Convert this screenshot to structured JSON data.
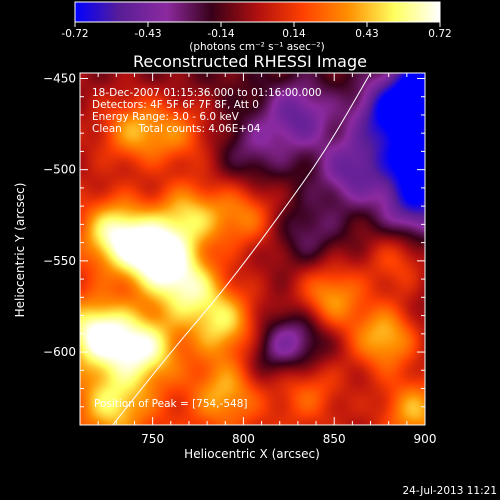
{
  "chart_data": {
    "type": "heatmap",
    "title": "Reconstructed RHESSI Image",
    "xlabel": "Heliocentric X (arcsec)",
    "ylabel": "Heliocentric Y (arcsec)",
    "xlim": [
      710,
      900
    ],
    "ylim": [
      -640,
      -447
    ],
    "x_ticks": [
      750,
      800,
      850,
      900
    ],
    "y_ticks": [
      -450,
      -500,
      -550,
      -600
    ],
    "colorbar": {
      "range": [
        -0.72,
        0.72
      ],
      "ticks": [
        "-0.72",
        "-0.43",
        "-0.14",
        "0.14",
        "0.43",
        "0.72"
      ],
      "unit_label": "(photons cm⁻² s⁻¹ asec⁻²)",
      "colors": [
        "#0000ff",
        "#5a1e96",
        "#8c2aa0",
        "#380018",
        "#b01010",
        "#ff4000",
        "#ff9000",
        "#ffff60",
        "#ffffff"
      ]
    },
    "annotations": [
      "18-Dec-2007 01:15:36.000 to 01:16:00.000",
      "Detectors: 4F 5F 6F 7F 8F, Att 0",
      "Energy Range: 3.0 - 6.0 keV",
      "Clean     Total counts: 4.06E+04"
    ],
    "peak_label": "Position of Peak = [754,-548]",
    "peak": [
      754,
      -548
    ],
    "limb_curve": [
      [
        728,
        -640
      ],
      [
        760,
        -600
      ],
      [
        790,
        -565
      ],
      [
        820,
        -525
      ],
      [
        845,
        -490
      ],
      [
        870,
        -447
      ]
    ],
    "emission_blobs": [
      {
        "x": 752,
        "y": -547,
        "value": 0.72
      },
      {
        "x": 730,
        "y": -535,
        "value": 0.6
      },
      {
        "x": 720,
        "y": -590,
        "value": 0.62
      },
      {
        "x": 745,
        "y": -598,
        "value": 0.55
      },
      {
        "x": 770,
        "y": -565,
        "value": 0.5
      },
      {
        "x": 790,
        "y": -585,
        "value": 0.45
      },
      {
        "x": 770,
        "y": -525,
        "value": 0.45
      },
      {
        "x": 800,
        "y": -525,
        "value": 0.35
      },
      {
        "x": 740,
        "y": -478,
        "value": 0.4
      },
      {
        "x": 765,
        "y": -480,
        "value": 0.3
      },
      {
        "x": 728,
        "y": -628,
        "value": 0.4
      },
      {
        "x": 790,
        "y": -622,
        "value": 0.35
      },
      {
        "x": 848,
        "y": -570,
        "value": 0.45
      },
      {
        "x": 878,
        "y": -592,
        "value": 0.5
      },
      {
        "x": 895,
        "y": -632,
        "value": 0.45
      },
      {
        "x": 885,
        "y": -550,
        "value": 0.3
      },
      {
        "x": 835,
        "y": -620,
        "value": 0.25
      },
      {
        "x": 830,
        "y": -470,
        "value": -0.35
      },
      {
        "x": 860,
        "y": -500,
        "value": -0.35
      },
      {
        "x": 880,
        "y": -470,
        "value": -0.55
      },
      {
        "x": 895,
        "y": -520,
        "value": -0.45
      },
      {
        "x": 900,
        "y": -455,
        "value": -0.72
      },
      {
        "x": 895,
        "y": -495,
        "value": -0.6
      },
      {
        "x": 805,
        "y": -490,
        "value": -0.2
      },
      {
        "x": 835,
        "y": -535,
        "value": -0.2
      },
      {
        "x": 832,
        "y": -592,
        "value": -0.3
      },
      {
        "x": 815,
        "y": -600,
        "value": -0.25
      }
    ]
  },
  "timestamp": "24-Jul-2013 11:21"
}
